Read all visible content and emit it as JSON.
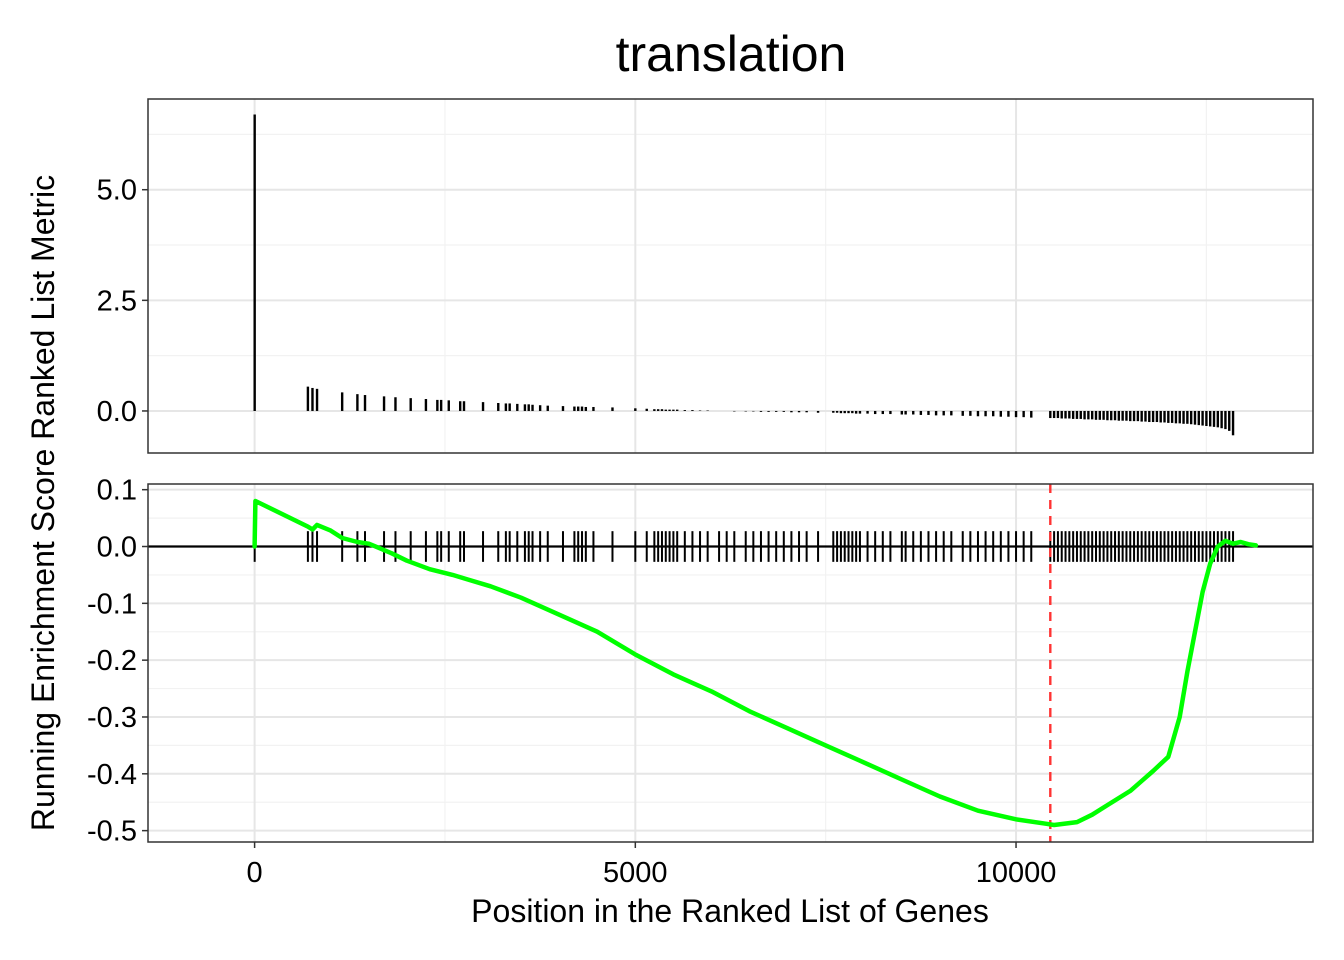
{
  "chart_data": {
    "type": "line",
    "title": "translation",
    "xlabel": "Position in the Ranked List of Genes",
    "shared_ylabel": "Running Enrichment Score Ranked List Metric",
    "xlim": [
      -1400,
      13900
    ],
    "xticks": [
      0,
      5000,
      10000
    ],
    "x_tick_labels": [
      "0",
      "5000",
      "10000"
    ],
    "grid": true,
    "panels": [
      {
        "name": "ranked-list-metric",
        "type": "bar",
        "ylim": [
          -0.95,
          7.05
        ],
        "yticks": [
          0,
          2.5,
          5
        ],
        "y_tick_labels": [
          "0.0",
          "2.5",
          "5.0"
        ],
        "x": [
          1,
          700,
          760,
          820,
          1150,
          1350,
          1450,
          1700,
          1850,
          2050,
          2250,
          2400,
          2450,
          2550,
          2700,
          2750,
          3000,
          3200,
          3300,
          3350,
          3450,
          3550,
          3600,
          3650,
          3750,
          3850,
          4050,
          4200,
          4250,
          4300,
          4350,
          4450,
          4700,
          5000,
          5150,
          5250,
          5300,
          5350,
          5400,
          5450,
          5500,
          5550,
          5650,
          5750,
          5850,
          5950,
          6100,
          6200,
          6300,
          6450,
          6550,
          6650,
          6750,
          6850,
          6950,
          7050,
          7150,
          7250,
          7400,
          7600,
          7650,
          7700,
          7750,
          7800,
          7850,
          7900,
          7950,
          8050,
          8150,
          8250,
          8350,
          8500,
          8550,
          8650,
          8750,
          8850,
          8950,
          9050,
          9150,
          9300,
          9400,
          9500,
          9600,
          9700,
          9800,
          9900,
          10000,
          10100,
          10200,
          10450,
          10500,
          10550,
          10600,
          10650,
          10700,
          10750,
          10800,
          10850,
          10900,
          10950,
          11000,
          11050,
          11100,
          11150,
          11200,
          11250,
          11300,
          11350,
          11400,
          11450,
          11500,
          11550,
          11600,
          11650,
          11700,
          11750,
          11800,
          11850,
          11900,
          11950,
          12000,
          12050,
          12100,
          12150,
          12200,
          12250,
          12300,
          12350,
          12400,
          12450,
          12500,
          12550,
          12600,
          12650,
          12700,
          12750,
          12800,
          12850
        ],
        "values": [
          6.7,
          0.55,
          0.52,
          0.5,
          0.42,
          0.38,
          0.36,
          0.33,
          0.31,
          0.29,
          0.27,
          0.25,
          0.25,
          0.24,
          0.22,
          0.22,
          0.2,
          0.18,
          0.17,
          0.17,
          0.16,
          0.15,
          0.15,
          0.14,
          0.13,
          0.12,
          0.11,
          0.1,
          0.1,
          0.1,
          0.09,
          0.09,
          0.08,
          0.06,
          0.05,
          0.04,
          0.04,
          0.04,
          0.03,
          0.03,
          0.03,
          0.03,
          0.02,
          0.02,
          0.01,
          0.01,
          0.0,
          0.0,
          -0.01,
          -0.01,
          -0.01,
          -0.02,
          -0.02,
          -0.02,
          -0.02,
          -0.03,
          -0.03,
          -0.03,
          -0.04,
          -0.04,
          -0.04,
          -0.05,
          -0.05,
          -0.05,
          -0.05,
          -0.06,
          -0.06,
          -0.06,
          -0.07,
          -0.07,
          -0.07,
          -0.08,
          -0.08,
          -0.08,
          -0.09,
          -0.09,
          -0.1,
          -0.1,
          -0.1,
          -0.11,
          -0.11,
          -0.12,
          -0.12,
          -0.12,
          -0.13,
          -0.13,
          -0.14,
          -0.14,
          -0.15,
          -0.16,
          -0.16,
          -0.16,
          -0.17,
          -0.17,
          -0.17,
          -0.18,
          -0.18,
          -0.18,
          -0.19,
          -0.19,
          -0.19,
          -0.2,
          -0.2,
          -0.2,
          -0.21,
          -0.21,
          -0.21,
          -0.22,
          -0.22,
          -0.22,
          -0.23,
          -0.23,
          -0.23,
          -0.24,
          -0.24,
          -0.25,
          -0.25,
          -0.25,
          -0.26,
          -0.26,
          -0.27,
          -0.27,
          -0.28,
          -0.28,
          -0.29,
          -0.29,
          -0.3,
          -0.31,
          -0.32,
          -0.33,
          -0.34,
          -0.35,
          -0.36,
          -0.37,
          -0.39,
          -0.41,
          -0.45,
          -0.55
        ]
      },
      {
        "name": "running-enrichment-score",
        "type": "line",
        "ylim": [
          -0.52,
          0.11
        ],
        "yticks": [
          -0.5,
          -0.4,
          -0.3,
          -0.2,
          -0.1,
          0.0,
          0.1
        ],
        "y_tick_labels": [
          "-0.5",
          "-0.4",
          "-0.3",
          "-0.2",
          "-0.1",
          "0.0",
          "0.1"
        ],
        "series": [
          {
            "color": "#00ff00",
            "x": [
              0,
              10,
              700,
              760,
              820,
              1000,
              1150,
              1350,
              1500,
              1800,
              2000,
              2300,
              2600,
              2800,
              3100,
              3500,
              4000,
              4500,
              5000,
              5500,
              6000,
              6500,
              7000,
              7500,
              8000,
              8500,
              9000,
              9500,
              10000,
              10400,
              10500,
              10800,
              11000,
              11200,
              11500,
              11800,
              12000,
              12150,
              12250,
              12350,
              12450,
              12550,
              12650,
              12750,
              12850,
              12950,
              13050,
              13150
            ],
            "y": [
              0.0,
              0.08,
              0.035,
              0.03,
              0.038,
              0.028,
              0.015,
              0.008,
              0.005,
              -0.012,
              -0.025,
              -0.04,
              -0.05,
              -0.058,
              -0.07,
              -0.09,
              -0.12,
              -0.15,
              -0.19,
              -0.225,
              -0.255,
              -0.29,
              -0.32,
              -0.35,
              -0.38,
              -0.41,
              -0.44,
              -0.465,
              -0.48,
              -0.488,
              -0.49,
              -0.485,
              -0.472,
              -0.455,
              -0.43,
              -0.395,
              -0.37,
              -0.3,
              -0.22,
              -0.15,
              -0.08,
              -0.03,
              0.0,
              0.01,
              0.005,
              0.008,
              0.004,
              0.002
            ]
          }
        ],
        "hits": [
          1,
          700,
          760,
          820,
          1150,
          1350,
          1450,
          1700,
          1850,
          2050,
          2250,
          2400,
          2450,
          2550,
          2700,
          2750,
          3000,
          3200,
          3300,
          3350,
          3450,
          3550,
          3600,
          3650,
          3750,
          3850,
          4050,
          4200,
          4250,
          4300,
          4350,
          4450,
          4700,
          5000,
          5150,
          5250,
          5300,
          5350,
          5400,
          5450,
          5500,
          5550,
          5650,
          5750,
          5850,
          5950,
          6100,
          6200,
          6300,
          6450,
          6550,
          6650,
          6750,
          6850,
          6950,
          7050,
          7150,
          7250,
          7400,
          7600,
          7650,
          7700,
          7750,
          7800,
          7850,
          7900,
          7950,
          8050,
          8150,
          8250,
          8350,
          8500,
          8550,
          8650,
          8750,
          8850,
          8950,
          9050,
          9150,
          9300,
          9400,
          9500,
          9600,
          9700,
          9800,
          9900,
          10000,
          10100,
          10200,
          10450,
          10500,
          10550,
          10600,
          10650,
          10700,
          10750,
          10800,
          10850,
          10900,
          10950,
          11000,
          11050,
          11100,
          11150,
          11200,
          11250,
          11300,
          11350,
          11400,
          11450,
          11500,
          11550,
          11600,
          11650,
          11700,
          11750,
          11800,
          11850,
          11900,
          11950,
          12000,
          12050,
          12100,
          12150,
          12200,
          12250,
          12300,
          12350,
          12400,
          12450,
          12500,
          12550,
          12600,
          12650,
          12700,
          12750,
          12800,
          12850
        ],
        "hit_color": "#000000",
        "zero_line": 0.0,
        "reference_line": {
          "x": 10450,
          "color": "#ff3333",
          "style": "dashed"
        }
      }
    ]
  }
}
